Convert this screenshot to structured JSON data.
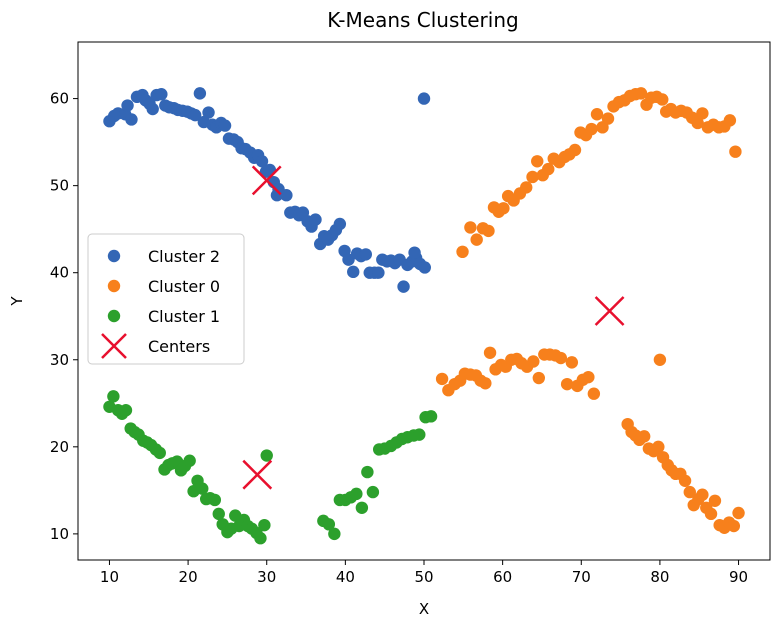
{
  "colors": {
    "cluster_2": "#3366b5",
    "cluster_0": "#f7801c",
    "cluster_1": "#2ca02c",
    "centers": "#e8102e"
  },
  "chart_data": {
    "type": "scatter",
    "title": "K-Means Clustering",
    "xlabel": "X",
    "ylabel": "Y",
    "xlim": [
      6,
      94
    ],
    "ylim": [
      7,
      66.5
    ],
    "xticks": [
      10,
      20,
      30,
      40,
      50,
      60,
      70,
      80,
      90
    ],
    "yticks": [
      10,
      20,
      30,
      40,
      50,
      60
    ],
    "grid": false,
    "legend": {
      "placement": "center-left",
      "entries": [
        "Cluster 2",
        "Cluster 0",
        "Cluster 1",
        "Centers"
      ]
    },
    "series": [
      {
        "name": "Cluster 2",
        "color_key": "cluster_2",
        "marker": "circle",
        "points": [
          [
            10.0,
            57.4
          ],
          [
            10.6,
            58.0
          ],
          [
            11.1,
            58.3
          ],
          [
            12.0,
            58.2
          ],
          [
            12.3,
            59.2
          ],
          [
            12.8,
            57.6
          ],
          [
            13.5,
            60.2
          ],
          [
            14.2,
            60.4
          ],
          [
            14.6,
            59.8
          ],
          [
            15.1,
            59.4
          ],
          [
            15.5,
            58.8
          ],
          [
            16.0,
            60.4
          ],
          [
            16.6,
            60.5
          ],
          [
            17.1,
            59.2
          ],
          [
            17.6,
            59.0
          ],
          [
            18.2,
            58.9
          ],
          [
            18.7,
            58.7
          ],
          [
            19.3,
            58.6
          ],
          [
            19.9,
            58.5
          ],
          [
            20.4,
            58.3
          ],
          [
            20.9,
            58.1
          ],
          [
            21.5,
            60.6
          ],
          [
            22.0,
            57.3
          ],
          [
            22.6,
            58.4
          ],
          [
            23.1,
            57.0
          ],
          [
            23.6,
            56.7
          ],
          [
            24.2,
            57.2
          ],
          [
            24.7,
            56.9
          ],
          [
            25.2,
            55.4
          ],
          [
            25.8,
            55.3
          ],
          [
            26.3,
            55.0
          ],
          [
            26.8,
            54.3
          ],
          [
            27.3,
            54.2
          ],
          [
            27.9,
            53.8
          ],
          [
            28.4,
            53.2
          ],
          [
            28.9,
            53.5
          ],
          [
            29.4,
            52.8
          ],
          [
            29.9,
            51.6
          ],
          [
            30.4,
            51.8
          ],
          [
            30.9,
            50.4
          ],
          [
            31.5,
            49.6
          ],
          [
            31.3,
            48.9
          ],
          [
            32.5,
            48.9
          ],
          [
            33.0,
            46.9
          ],
          [
            33.6,
            47.0
          ],
          [
            34.1,
            46.6
          ],
          [
            34.6,
            46.9
          ],
          [
            35.2,
            45.9
          ],
          [
            35.7,
            45.3
          ],
          [
            36.2,
            46.1
          ],
          [
            36.8,
            43.3
          ],
          [
            37.3,
            44.2
          ],
          [
            37.8,
            43.8
          ],
          [
            38.3,
            44.3
          ],
          [
            38.8,
            44.9
          ],
          [
            39.3,
            45.6
          ],
          [
            39.9,
            42.5
          ],
          [
            40.4,
            41.5
          ],
          [
            41.0,
            40.1
          ],
          [
            41.5,
            42.2
          ],
          [
            42.0,
            41.9
          ],
          [
            42.6,
            42.1
          ],
          [
            43.1,
            40.0
          ],
          [
            43.7,
            40.0
          ],
          [
            44.2,
            40.0
          ],
          [
            44.7,
            41.5
          ],
          [
            45.3,
            41.3
          ],
          [
            45.8,
            41.4
          ],
          [
            46.3,
            41.1
          ],
          [
            46.9,
            41.5
          ],
          [
            47.4,
            38.4
          ],
          [
            47.9,
            40.9
          ],
          [
            48.5,
            41.3
          ],
          [
            49.0,
            41.7
          ],
          [
            49.5,
            41.0
          ],
          [
            50.1,
            40.6
          ],
          [
            48.8,
            42.3
          ],
          [
            50.0,
            60.0
          ]
        ]
      },
      {
        "name": "Cluster 0",
        "color_key": "cluster_0",
        "marker": "circle",
        "points": [
          [
            54.9,
            42.4
          ],
          [
            55.9,
            45.2
          ],
          [
            56.7,
            43.8
          ],
          [
            57.5,
            45.1
          ],
          [
            58.2,
            44.8
          ],
          [
            58.9,
            47.5
          ],
          [
            59.5,
            47.0
          ],
          [
            60.1,
            47.4
          ],
          [
            60.7,
            48.8
          ],
          [
            61.4,
            48.3
          ],
          [
            62.2,
            49.1
          ],
          [
            63.0,
            49.8
          ],
          [
            63.8,
            51.0
          ],
          [
            64.4,
            52.8
          ],
          [
            65.1,
            51.2
          ],
          [
            65.8,
            51.9
          ],
          [
            66.5,
            53.1
          ],
          [
            67.2,
            52.7
          ],
          [
            67.9,
            53.3
          ],
          [
            68.5,
            53.6
          ],
          [
            69.2,
            54.1
          ],
          [
            69.9,
            56.1
          ],
          [
            70.6,
            55.8
          ],
          [
            71.3,
            56.5
          ],
          [
            72.0,
            58.2
          ],
          [
            72.7,
            56.7
          ],
          [
            73.4,
            57.7
          ],
          [
            74.1,
            59.1
          ],
          [
            74.8,
            59.6
          ],
          [
            75.5,
            59.8
          ],
          [
            76.2,
            60.3
          ],
          [
            76.9,
            60.5
          ],
          [
            77.6,
            60.6
          ],
          [
            78.3,
            59.3
          ],
          [
            78.9,
            60.1
          ],
          [
            79.6,
            60.2
          ],
          [
            80.3,
            59.9
          ],
          [
            80.8,
            58.5
          ],
          [
            81.4,
            58.8
          ],
          [
            82.0,
            58.4
          ],
          [
            82.7,
            58.6
          ],
          [
            83.4,
            58.4
          ],
          [
            84.1,
            57.8
          ],
          [
            84.8,
            57.2
          ],
          [
            85.4,
            58.3
          ],
          [
            86.1,
            56.7
          ],
          [
            86.8,
            57.0
          ],
          [
            87.5,
            56.7
          ],
          [
            88.2,
            56.8
          ],
          [
            88.9,
            57.5
          ],
          [
            89.6,
            53.9
          ],
          [
            52.3,
            27.8
          ],
          [
            53.1,
            26.5
          ],
          [
            53.9,
            27.2
          ],
          [
            54.6,
            27.6
          ],
          [
            55.2,
            28.4
          ],
          [
            55.9,
            28.3
          ],
          [
            56.6,
            28.2
          ],
          [
            57.2,
            27.6
          ],
          [
            57.8,
            27.3
          ],
          [
            58.4,
            30.8
          ],
          [
            59.1,
            28.9
          ],
          [
            59.8,
            29.4
          ],
          [
            60.4,
            29.2
          ],
          [
            61.1,
            30.0
          ],
          [
            61.8,
            30.1
          ],
          [
            62.4,
            29.6
          ],
          [
            63.1,
            29.2
          ],
          [
            63.9,
            29.8
          ],
          [
            64.6,
            27.9
          ],
          [
            65.3,
            30.6
          ],
          [
            66.0,
            30.6
          ],
          [
            66.7,
            30.5
          ],
          [
            67.4,
            30.2
          ],
          [
            68.2,
            27.2
          ],
          [
            68.8,
            29.7
          ],
          [
            69.5,
            27.0
          ],
          [
            70.2,
            27.7
          ],
          [
            70.9,
            28.0
          ],
          [
            71.6,
            26.1
          ],
          [
            75.9,
            22.6
          ],
          [
            76.4,
            21.7
          ],
          [
            76.9,
            21.3
          ],
          [
            77.4,
            20.8
          ],
          [
            78.0,
            21.2
          ],
          [
            78.6,
            19.8
          ],
          [
            79.2,
            19.5
          ],
          [
            79.8,
            20.0
          ],
          [
            80.4,
            18.8
          ],
          [
            81.0,
            17.9
          ],
          [
            81.5,
            17.3
          ],
          [
            82.0,
            16.9
          ],
          [
            82.6,
            16.9
          ],
          [
            83.2,
            16.1
          ],
          [
            83.8,
            14.8
          ],
          [
            84.3,
            13.3
          ],
          [
            84.9,
            14.0
          ],
          [
            85.4,
            14.5
          ],
          [
            85.9,
            13.0
          ],
          [
            86.5,
            12.3
          ],
          [
            87.0,
            13.8
          ],
          [
            87.6,
            11.0
          ],
          [
            88.2,
            10.7
          ],
          [
            88.8,
            11.3
          ],
          [
            89.4,
            10.9
          ],
          [
            90.0,
            12.4
          ],
          [
            80.0,
            30.0
          ]
        ]
      },
      {
        "name": "Cluster 1",
        "color_key": "cluster_1",
        "marker": "circle",
        "points": [
          [
            10.0,
            24.6
          ],
          [
            10.5,
            25.8
          ],
          [
            11.1,
            24.2
          ],
          [
            11.6,
            23.8
          ],
          [
            12.1,
            24.2
          ],
          [
            12.7,
            22.1
          ],
          [
            13.2,
            21.7
          ],
          [
            13.7,
            21.4
          ],
          [
            14.3,
            20.7
          ],
          [
            14.8,
            20.5
          ],
          [
            15.3,
            20.2
          ],
          [
            15.9,
            19.7
          ],
          [
            16.4,
            19.3
          ],
          [
            17.0,
            17.4
          ],
          [
            17.5,
            17.9
          ],
          [
            18.0,
            18.1
          ],
          [
            18.6,
            18.3
          ],
          [
            19.1,
            17.3
          ],
          [
            19.6,
            17.8
          ],
          [
            20.2,
            18.4
          ],
          [
            20.7,
            14.9
          ],
          [
            21.2,
            16.1
          ],
          [
            21.8,
            15.2
          ],
          [
            22.3,
            14.0
          ],
          [
            22.8,
            14.1
          ],
          [
            23.4,
            13.9
          ],
          [
            23.9,
            12.3
          ],
          [
            24.4,
            11.1
          ],
          [
            25.0,
            10.2
          ],
          [
            25.5,
            10.6
          ],
          [
            26.0,
            12.1
          ],
          [
            26.5,
            10.9
          ],
          [
            27.1,
            11.6
          ],
          [
            27.6,
            10.9
          ],
          [
            28.1,
            10.6
          ],
          [
            28.7,
            10.1
          ],
          [
            29.2,
            9.5
          ],
          [
            29.7,
            11.0
          ],
          [
            30.0,
            19.0
          ],
          [
            37.2,
            11.5
          ],
          [
            37.9,
            11.1
          ],
          [
            38.6,
            10.0
          ],
          [
            39.3,
            13.9
          ],
          [
            40.0,
            13.9
          ],
          [
            40.7,
            14.2
          ],
          [
            41.4,
            14.6
          ],
          [
            42.1,
            13.0
          ],
          [
            42.8,
            17.1
          ],
          [
            43.5,
            14.8
          ],
          [
            44.3,
            19.7
          ],
          [
            45.0,
            19.8
          ],
          [
            45.8,
            20.1
          ],
          [
            46.5,
            20.5
          ],
          [
            47.2,
            20.9
          ],
          [
            47.9,
            21.1
          ],
          [
            48.7,
            21.3
          ],
          [
            49.4,
            21.4
          ],
          [
            50.2,
            23.4
          ],
          [
            50.9,
            23.5
          ]
        ]
      },
      {
        "name": "Centers",
        "color_key": "centers",
        "marker": "x",
        "points": [
          [
            30.0,
            50.6
          ],
          [
            28.8,
            16.8
          ],
          [
            73.6,
            35.6
          ]
        ]
      }
    ]
  }
}
